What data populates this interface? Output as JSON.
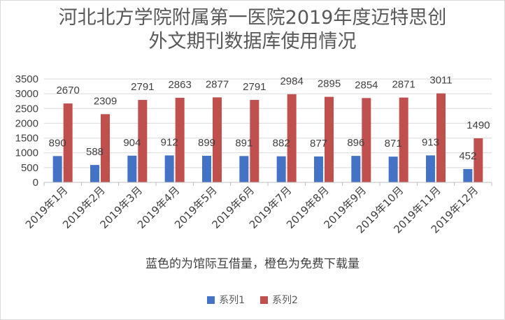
{
  "chart_data": {
    "type": "bar",
    "title_lines": [
      "河北北方学院附属第一医院2019年度迈特思创",
      "外文期刊数据库使用情况"
    ],
    "categories": [
      "2019年1月",
      "2019年2月",
      "2019年3月",
      "2019年4月",
      "2019年5月",
      "2019年6月",
      "2019年7月",
      "2019年8月",
      "2019年9月",
      "2019年10月",
      "2019年11月",
      "2019年12月"
    ],
    "series": [
      {
        "name": "系列1",
        "color": "#4472c4",
        "values": [
          890,
          588,
          904,
          912,
          899,
          891,
          882,
          877,
          896,
          871,
          913,
          452
        ]
      },
      {
        "name": "系列2",
        "color": "#c0504d",
        "values": [
          2670,
          2309,
          2791,
          2863,
          2877,
          2791,
          2984,
          2895,
          2854,
          2871,
          3011,
          1490
        ]
      }
    ],
    "yticks": [
      0,
      500,
      1000,
      1500,
      2000,
      2500,
      3000,
      3500
    ],
    "ylim": [
      0,
      3500
    ],
    "caption": "蓝色的为馆际互借量，橙色为免费下载量",
    "legend_position": "bottom"
  }
}
